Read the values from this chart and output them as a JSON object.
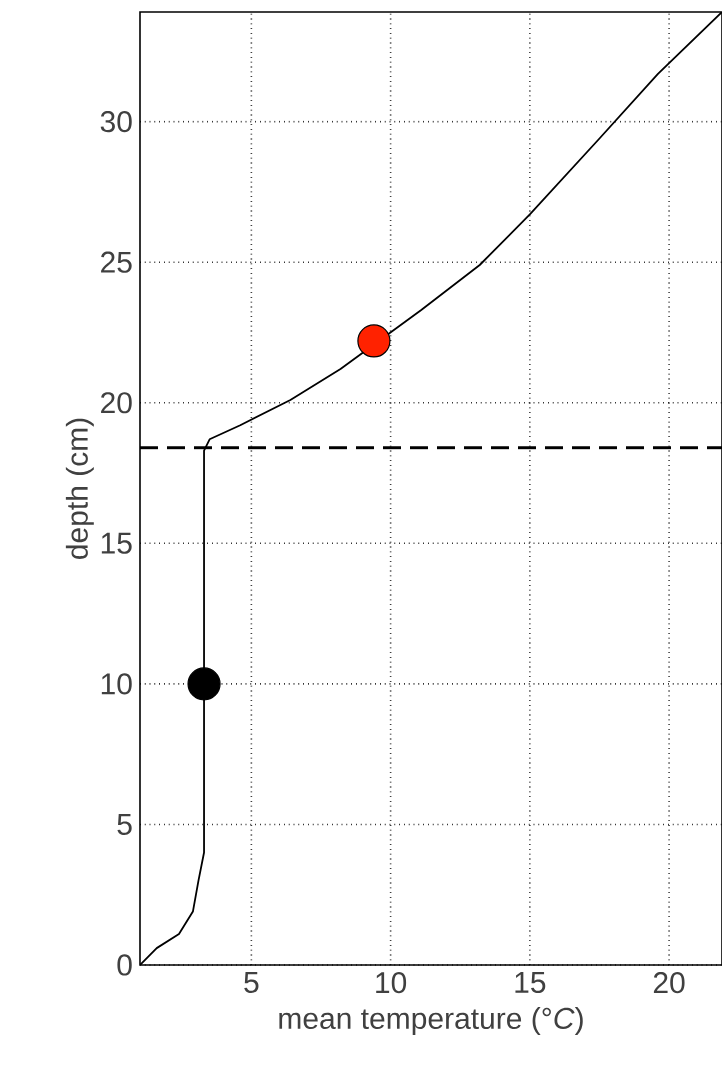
{
  "chart_data": {
    "type": "line",
    "xlabel": "mean temperature (°*C*)",
    "ylabel": "depth (cm)",
    "xlim": [
      1,
      21.9
    ],
    "ylim": [
      0,
      33.9
    ],
    "xticks": [
      5,
      10,
      15,
      20
    ],
    "yticks": [
      0,
      5,
      10,
      15,
      20,
      25,
      30
    ],
    "grid": true,
    "series": [
      {
        "color": "#000000",
        "marker": "none",
        "x": [
          1,
          1.6,
          2.4,
          2.9,
          3.1,
          3.3,
          3.3,
          3.5,
          4.6,
          6.4,
          8.2,
          11.1,
          13.2,
          15,
          17.5,
          19.6,
          21.9
        ],
        "values": [
          0,
          0.6,
          1.1,
          1.9,
          3,
          4,
          18.3,
          18.7,
          19.2,
          20.1,
          21.2,
          23.3,
          24.9,
          26.7,
          29.4,
          31.7,
          33.9
        ]
      },
      {
        "type": "scatter",
        "color": "#ff2200",
        "marker": "circle",
        "x": [
          9.4
        ],
        "values": [
          22.2
        ]
      },
      {
        "type": "scatter",
        "color": "#000000",
        "marker": "circle",
        "x": [
          3.3
        ],
        "values": [
          10
        ]
      }
    ],
    "ref_lines": [
      {
        "axis": "y",
        "value": 18.4,
        "color": "#000000",
        "line_style": "dashed"
      }
    ]
  }
}
